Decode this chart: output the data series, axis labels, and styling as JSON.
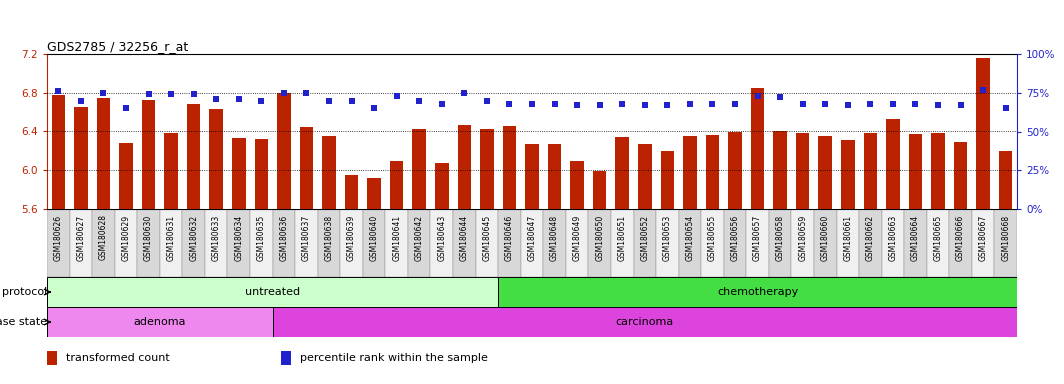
{
  "title": "GDS2785 / 32256_r_at",
  "samples": [
    "GSM180626",
    "GSM180627",
    "GSM180628",
    "GSM180629",
    "GSM180630",
    "GSM180631",
    "GSM180632",
    "GSM180633",
    "GSM180634",
    "GSM180635",
    "GSM180636",
    "GSM180637",
    "GSM180638",
    "GSM180639",
    "GSM180640",
    "GSM180641",
    "GSM180642",
    "GSM180643",
    "GSM180644",
    "GSM180645",
    "GSM180646",
    "GSM180647",
    "GSM180648",
    "GSM180649",
    "GSM180650",
    "GSM180651",
    "GSM180652",
    "GSM180653",
    "GSM180654",
    "GSM180655",
    "GSM180656",
    "GSM180657",
    "GSM180658",
    "GSM180659",
    "GSM180660",
    "GSM180661",
    "GSM180662",
    "GSM180663",
    "GSM180664",
    "GSM180665",
    "GSM180666",
    "GSM180667",
    "GSM180668"
  ],
  "bar_values": [
    6.78,
    6.65,
    6.75,
    6.28,
    6.73,
    6.38,
    6.68,
    6.63,
    6.33,
    6.32,
    6.8,
    6.45,
    6.35,
    5.95,
    5.92,
    6.1,
    6.43,
    6.07,
    6.47,
    6.43,
    6.46,
    6.27,
    6.27,
    6.1,
    5.99,
    6.34,
    6.27,
    6.2,
    6.35,
    6.36,
    6.39,
    6.85,
    6.4,
    6.38,
    6.35,
    6.31,
    6.38,
    6.53,
    6.37,
    6.38,
    6.29,
    7.16,
    6.2
  ],
  "percentile_values": [
    76,
    70,
    75,
    65,
    74,
    74,
    74,
    71,
    71,
    70,
    75,
    75,
    70,
    70,
    65,
    73,
    70,
    68,
    75,
    70,
    68,
    68,
    68,
    67,
    67,
    68,
    67,
    67,
    68,
    68,
    68,
    73,
    72,
    68,
    68,
    67,
    68,
    68,
    68,
    67,
    67,
    77,
    65
  ],
  "ylim_left": [
    5.6,
    7.2
  ],
  "ylim_right": [
    0,
    100
  ],
  "yticks_left": [
    5.6,
    6.0,
    6.4,
    6.8,
    7.2
  ],
  "yticks_right": [
    0,
    25,
    50,
    75,
    100
  ],
  "grid_lines": [
    6.0,
    6.4,
    6.8
  ],
  "bar_color": "#bb2200",
  "dot_color": "#2222cc",
  "protocol_groups": [
    {
      "label": "untreated",
      "start": 0,
      "end": 19,
      "color": "#ccffcc"
    },
    {
      "label": "chemotherapy",
      "start": 20,
      "end": 42,
      "color": "#44dd44"
    }
  ],
  "disease_groups": [
    {
      "label": "adenoma",
      "start": 0,
      "end": 9,
      "color": "#ee88ee"
    },
    {
      "label": "carcinoma",
      "start": 10,
      "end": 42,
      "color": "#dd44dd"
    }
  ],
  "protocol_label": "protocol",
  "disease_label": "disease state",
  "legend_items": [
    {
      "label": "transformed count",
      "color": "#bb2200"
    },
    {
      "label": "percentile rank within the sample",
      "color": "#2222cc"
    }
  ]
}
